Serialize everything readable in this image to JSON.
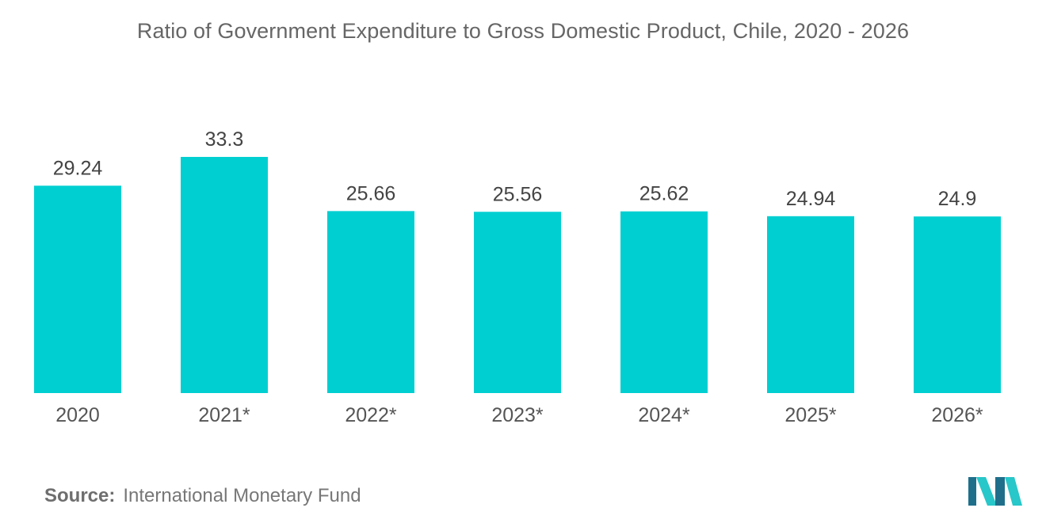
{
  "title": "Ratio of Government Expenditure to Gross Domestic Product, Chile, 2020 - 2026",
  "source": {
    "label": "Source:",
    "text": "International Monetary Fund"
  },
  "colors": {
    "bar": "#00cfd1",
    "label_text": "#444444",
    "axis_text": "#555555",
    "logo_dark": "#1f6f8b",
    "logo_light": "#28c7c9"
  },
  "chart_data": {
    "type": "bar",
    "categories": [
      "2020",
      "2021*",
      "2022*",
      "2023*",
      "2024*",
      "2025*",
      "2026*"
    ],
    "values": [
      29.24,
      33.3,
      25.66,
      25.56,
      25.62,
      24.94,
      24.9
    ],
    "value_labels": [
      "29.24",
      "33.3",
      "25.66",
      "25.56",
      "25.62",
      "24.94",
      "24.9"
    ],
    "title": "Ratio of Government Expenditure to Gross Domestic Product, Chile, 2020 - 2026",
    "xlabel": "",
    "ylabel": "",
    "ylim": [
      0,
      33.3
    ],
    "grid": false,
    "legend": "none",
    "data_labels": true
  }
}
